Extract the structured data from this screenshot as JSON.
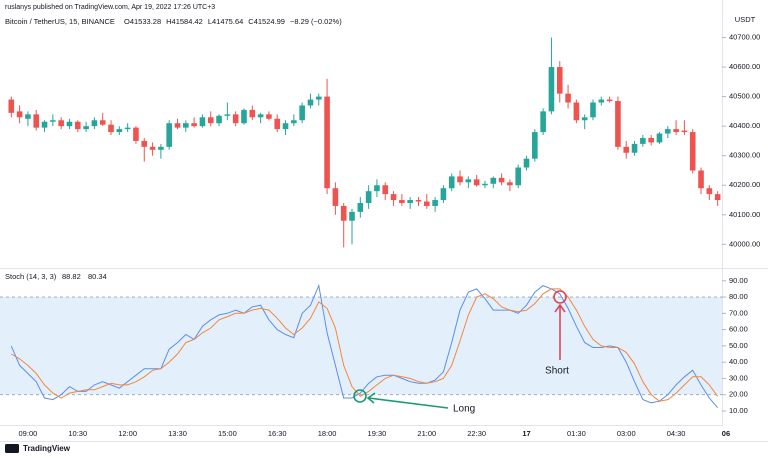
{
  "header": {
    "published": "ruslanys published on TradingView.com, Apr 19, 2022 17:26 UTC+3",
    "symbol": "Bitcoin / TetherUS, 15, BINANCE",
    "ohlc": [
      "O41533.28",
      "H41584.42",
      "L41475.64",
      "C41524.99",
      "−8.29 (−0.02%)"
    ]
  },
  "footer": {
    "logo": "TradingView"
  },
  "chart_data": [
    {
      "type": "candlestick",
      "unit": "USDT",
      "up_color": "#26a69a",
      "down_color": "#ef5350",
      "open": [
        40490,
        40450,
        40425,
        40440,
        40395,
        40415,
        40420,
        40400,
        40415,
        40390,
        40400,
        40420,
        40405,
        40380,
        40390,
        40395,
        40350,
        40330,
        40320,
        40330,
        40410,
        40395,
        40410,
        40400,
        40430,
        40410,
        40435,
        40440,
        40410,
        40455,
        40430,
        40440,
        40425,
        40390,
        40410,
        40420,
        40470,
        40490,
        40500,
        40190,
        40130,
        40080,
        40110,
        40140,
        40180,
        40200,
        40170,
        40150,
        40140,
        40150,
        40145,
        40130,
        40150,
        40190,
        40230,
        40210,
        40220,
        40200,
        40205,
        40225,
        40210,
        40200,
        40260,
        40290,
        40380,
        40450,
        40600,
        40510,
        40480,
        40420,
        40430,
        40480,
        40490,
        40485,
        40330,
        40310,
        40340,
        40360,
        40345,
        40375,
        40390,
        40385,
        40380,
        40250,
        40190,
        40170,
        null
      ],
      "high": [
        40500,
        40470,
        40450,
        40455,
        40420,
        40440,
        40430,
        40425,
        40420,
        40415,
        40430,
        40445,
        40420,
        40400,
        40410,
        40400,
        40360,
        40345,
        40340,
        40420,
        40425,
        40420,
        40430,
        40440,
        40450,
        40440,
        40480,
        40450,
        40460,
        40470,
        40445,
        40450,
        40440,
        40420,
        40440,
        40480,
        40510,
        40510,
        40560,
        40210,
        40140,
        40120,
        40160,
        40200,
        40220,
        40210,
        40180,
        40170,
        40160,
        40160,
        40170,
        40160,
        40200,
        40240,
        40250,
        40230,
        40235,
        40215,
        40230,
        40240,
        40220,
        40270,
        40300,
        40390,
        40460,
        40700,
        40620,
        40540,
        40490,
        40440,
        40490,
        40500,
        40500,
        40500,
        40350,
        40350,
        40370,
        40370,
        40380,
        40400,
        40420,
        40420,
        40390,
        40260,
        40200,
        40180,
        null
      ],
      "low": [
        40430,
        40410,
        40400,
        40385,
        40380,
        40400,
        40390,
        40390,
        40380,
        40380,
        40390,
        40400,
        40370,
        40370,
        40380,
        40340,
        40280,
        40300,
        40290,
        40320,
        40390,
        40380,
        40395,
        40395,
        40400,
        40400,
        40420,
        40400,
        40405,
        40420,
        40410,
        40420,
        40380,
        40370,
        40400,
        40410,
        40460,
        40470,
        40170,
        40100,
        39990,
        40000,
        40090,
        40120,
        40160,
        40150,
        40130,
        40130,
        40120,
        40130,
        40120,
        40110,
        40140,
        40180,
        40200,
        40190,
        40195,
        40190,
        40190,
        40200,
        40180,
        40190,
        40250,
        40280,
        40370,
        40440,
        40480,
        40460,
        40410,
        40390,
        40420,
        40470,
        40480,
        40320,
        40290,
        40300,
        40330,
        40335,
        40340,
        40360,
        40370,
        40370,
        40240,
        40170,
        40150,
        40130,
        null
      ],
      "close": [
        40445,
        40430,
        40440,
        40395,
        40415,
        40420,
        40400,
        40415,
        40390,
        40400,
        40420,
        40405,
        40380,
        40390,
        40395,
        40350,
        40330,
        40320,
        40330,
        40410,
        40395,
        40410,
        40400,
        40430,
        40410,
        40435,
        40440,
        40410,
        40455,
        40430,
        40440,
        40425,
        40390,
        40410,
        40420,
        40470,
        40490,
        40500,
        40190,
        40130,
        40080,
        40110,
        40140,
        40180,
        40200,
        40170,
        40150,
        40140,
        40150,
        40145,
        40130,
        40150,
        40190,
        40230,
        40210,
        40220,
        40200,
        40205,
        40225,
        40210,
        40200,
        40260,
        40290,
        40380,
        40450,
        40600,
        40510,
        40480,
        40420,
        40430,
        40480,
        40490,
        40485,
        40330,
        40310,
        40340,
        40360,
        40345,
        40375,
        40390,
        40380,
        40380,
        40250,
        40190,
        40170,
        40150,
        null
      ],
      "ylim": [
        39920,
        40810
      ],
      "yticks": [
        {
          "value": 40000,
          "label": "40000.00"
        },
        {
          "value": 40100,
          "label": "40100.00"
        },
        {
          "value": 40200,
          "label": "40200.00"
        },
        {
          "value": 40300,
          "label": "40300.00"
        },
        {
          "value": 40400,
          "label": "40400.00"
        },
        {
          "value": 40500,
          "label": "40500.00"
        },
        {
          "value": 40600,
          "label": "40600.00"
        },
        {
          "value": 40700,
          "label": "40700.00"
        }
      ]
    },
    {
      "type": "line",
      "label": "Stoch (14, 3, 3)",
      "legend_values": [
        "88.82",
        "80.34"
      ],
      "categories": [
        null,
        null,
        "09:00",
        null,
        null,
        null,
        null,
        null,
        "10:30",
        null,
        null,
        null,
        null,
        null,
        "12:00",
        null,
        null,
        null,
        null,
        null,
        "13:30",
        null,
        null,
        null,
        null,
        null,
        "15:00",
        null,
        null,
        null,
        null,
        null,
        "16:30",
        null,
        null,
        null,
        null,
        null,
        "18:00",
        null,
        null,
        null,
        null,
        null,
        "19:30",
        null,
        null,
        null,
        null,
        null,
        "21:00",
        null,
        null,
        null,
        null,
        null,
        "22:30",
        null,
        null,
        null,
        null,
        null,
        "17",
        null,
        null,
        null,
        null,
        null,
        "01:30",
        null,
        null,
        null,
        null,
        null,
        "03:00",
        null,
        null,
        null,
        null,
        null,
        "04:30",
        null,
        null,
        null,
        null,
        null,
        "06"
      ],
      "series": [
        {
          "color": "#5b8def",
          "values": [
            50,
            38,
            33,
            28,
            18,
            17,
            20,
            25,
            22,
            22,
            26,
            28,
            26,
            24,
            28,
            32,
            36,
            36,
            36,
            48,
            52,
            57,
            54,
            62,
            66,
            69,
            70,
            72,
            70,
            74,
            75,
            66,
            60,
            57,
            55,
            70,
            75,
            87,
            58,
            38,
            18,
            18,
            21,
            27,
            31,
            32,
            32,
            30,
            28,
            27,
            27,
            29,
            34,
            52,
            72,
            83,
            85,
            79,
            72,
            72,
            72,
            70,
            75,
            83,
            87,
            85,
            82,
            73,
            62,
            52,
            49,
            49,
            50,
            49,
            40,
            28,
            17,
            15,
            16,
            20,
            26,
            31,
            35,
            26,
            18,
            12,
            null
          ]
        },
        {
          "color": "#f5863b",
          "values": [
            45,
            42,
            38,
            33,
            26,
            21,
            18,
            21,
            22,
            23,
            23,
            25,
            27,
            26,
            26,
            28,
            31,
            35,
            36,
            40,
            45,
            52,
            54,
            58,
            61,
            66,
            68,
            70,
            70,
            72,
            73,
            72,
            67,
            61,
            57,
            61,
            67,
            77,
            73,
            61,
            38,
            25,
            19,
            22,
            26,
            30,
            32,
            31,
            30,
            28,
            27,
            28,
            30,
            38,
            53,
            69,
            80,
            82,
            79,
            74,
            72,
            71,
            72,
            76,
            82,
            85,
            85,
            80,
            72,
            62,
            54,
            50,
            49,
            49,
            46,
            39,
            28,
            20,
            16,
            17,
            21,
            26,
            31,
            31,
            26,
            19,
            null
          ]
        }
      ],
      "ylim": [
        2,
        96
      ],
      "yticks": [
        {
          "value": 10,
          "label": "10.00"
        },
        {
          "value": 20,
          "label": "20.00"
        },
        {
          "value": 30,
          "label": "30.00"
        },
        {
          "value": 40,
          "label": "40.00"
        },
        {
          "value": 50,
          "label": "50.00"
        },
        {
          "value": 60,
          "label": "60.00"
        },
        {
          "value": 70,
          "label": "70.00"
        },
        {
          "value": 80,
          "label": "80.00"
        },
        {
          "value": 90,
          "label": "90.00"
        }
      ],
      "bands": [
        20,
        80
      ],
      "band_color": "#e3f0fc",
      "annotations": [
        {
          "text": "Long",
          "color": "#1a9b74"
        },
        {
          "text": "Short",
          "color": "#e0455a"
        }
      ]
    }
  ]
}
